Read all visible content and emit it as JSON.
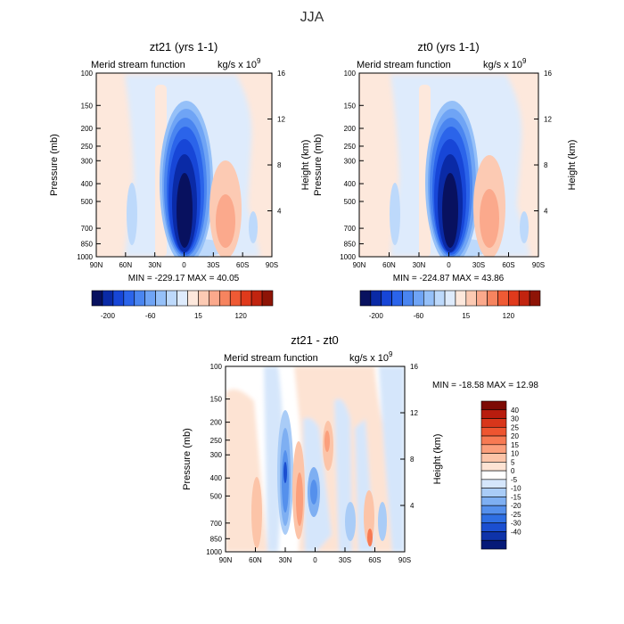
{
  "page_title": "JJA",
  "chart_data": [
    {
      "type": "heatmap",
      "title": "zt21  (yrs 1-1)",
      "variable": "Merid stream function",
      "units": "kg/s x 10",
      "units_exponent": "9",
      "xlabel": "",
      "ylabel": "Pressure (mb)",
      "y2label": "Height (km)",
      "x_ticks": [
        "90N",
        "60N",
        "30N",
        "0",
        "30S",
        "60S",
        "90S"
      ],
      "y_ticks": [
        "100",
        "150",
        "200",
        "250",
        "300",
        "400",
        "500",
        "700",
        "850",
        "1000"
      ],
      "y2_ticks": [
        "16",
        "12",
        "8",
        "4"
      ],
      "stats_text": "MIN = -229.17   MAX =   40.05",
      "min": -229.17,
      "max": 40.05,
      "colorbar": {
        "orientation": "horizontal",
        "labels": [
          "-200",
          "-60",
          "15",
          "120"
        ],
        "colors": [
          "#08115f",
          "#0a2aa6",
          "#1746d7",
          "#2b64ea",
          "#4a85f0",
          "#6fa4f5",
          "#95c0f8",
          "#bdd9fb",
          "#deebfc",
          "#fde8dc",
          "#fccab3",
          "#fba98c",
          "#f6845f",
          "#ef5a34",
          "#e03a1c",
          "#c1240f",
          "#8e1406"
        ]
      },
      "features": [
        {
          "label": "negative cell",
          "lat_range": [
            "20N",
            "0"
          ],
          "p_range": [
            150,
            850
          ],
          "peak": -229.17
        },
        {
          "label": "positive cell",
          "lat_range": [
            "20S",
            "60S"
          ],
          "p_range": [
            300,
            850
          ],
          "peak": 40.05
        }
      ]
    },
    {
      "type": "heatmap",
      "title": "zt0  (yrs 1-1)",
      "variable": "Merid stream function",
      "units": "kg/s x 10",
      "units_exponent": "9",
      "xlabel": "",
      "ylabel": "Pressure (mb)",
      "y2label": "Height (km)",
      "x_ticks": [
        "90N",
        "60N",
        "30N",
        "0",
        "30S",
        "60S",
        "90S"
      ],
      "y_ticks": [
        "100",
        "150",
        "200",
        "250",
        "300",
        "400",
        "500",
        "700",
        "850",
        "1000"
      ],
      "y2_ticks": [
        "16",
        "12",
        "8",
        "4"
      ],
      "stats_text": "MIN = -224.87   MAX =   43.86",
      "min": -224.87,
      "max": 43.86,
      "colorbar": {
        "orientation": "horizontal",
        "labels": [
          "-200",
          "-60",
          "15",
          "120"
        ],
        "colors": [
          "#08115f",
          "#0a2aa6",
          "#1746d7",
          "#2b64ea",
          "#4a85f0",
          "#6fa4f5",
          "#95c0f8",
          "#bdd9fb",
          "#deebfc",
          "#fde8dc",
          "#fccab3",
          "#fba98c",
          "#f6845f",
          "#ef5a34",
          "#e03a1c",
          "#c1240f",
          "#8e1406"
        ]
      },
      "features": [
        {
          "label": "negative cell",
          "lat_range": [
            "20N",
            "0"
          ],
          "p_range": [
            150,
            850
          ],
          "peak": -224.87
        },
        {
          "label": "positive cell",
          "lat_range": [
            "20S",
            "60S"
          ],
          "p_range": [
            300,
            850
          ],
          "peak": 43.86
        }
      ]
    },
    {
      "type": "heatmap",
      "title": "zt21 - zt0",
      "variable": "Merid stream function",
      "units": "kg/s x 10",
      "units_exponent": "9",
      "xlabel": "",
      "ylabel": "Pressure (mb)",
      "y2label": "Height (km)",
      "x_ticks": [
        "90N",
        "60N",
        "30N",
        "0",
        "30S",
        "60S",
        "90S"
      ],
      "y_ticks": [
        "100",
        "150",
        "200",
        "250",
        "300",
        "400",
        "500",
        "700",
        "850",
        "1000"
      ],
      "y2_ticks": [
        "16",
        "12",
        "8",
        "4"
      ],
      "stats_text": "MIN = -18.58   MAX =   12.98",
      "min": -18.58,
      "max": 12.98,
      "colorbar": {
        "orientation": "vertical",
        "labels": [
          "40",
          "30",
          "25",
          "20",
          "15",
          "10",
          "5",
          "0",
          "-5",
          "-10",
          "-15",
          "-20",
          "-25",
          "-30",
          "-40"
        ],
        "colors": [
          "#7d0a04",
          "#b81c0e",
          "#d8361b",
          "#ee5530",
          "#f77a53",
          "#fb9f7c",
          "#fcc4a8",
          "#fde3d3",
          "#ffffff",
          "#d5e6fb",
          "#a9ccf7",
          "#7eaff2",
          "#5590ec",
          "#2f6fe3",
          "#1b4fd0",
          "#0e33a9",
          "#061a78"
        ]
      },
      "features": [
        {
          "label": "negative band",
          "lat_range": [
            "35N",
            "25N"
          ],
          "p_range": [
            250,
            850
          ],
          "peak": -18.58
        },
        {
          "label": "positive band",
          "lat_range": [
            "10N",
            "0"
          ],
          "p_range": [
            200,
            500
          ],
          "peak": 12.98
        }
      ]
    }
  ]
}
